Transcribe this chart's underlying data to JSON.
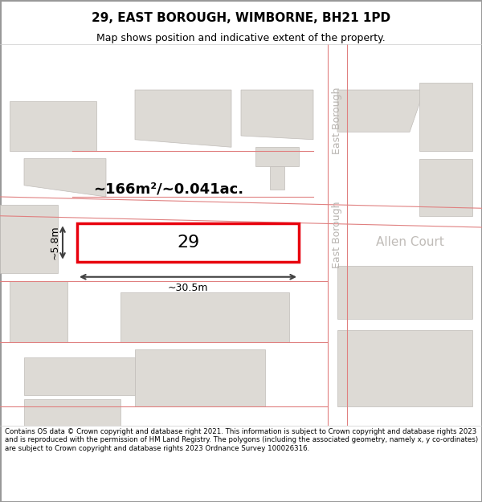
{
  "title": "29, EAST BOROUGH, WIMBORNE, BH21 1PD",
  "subtitle": "Map shows position and indicative extent of the property.",
  "footer": "Contains OS data © Crown copyright and database right 2021. This information is subject to Crown copyright and database rights 2023 and is reproduced with the permission of HM Land Registry. The polygons (including the associated geometry, namely x, y co-ordinates) are subject to Crown copyright and database rights 2023 Ordnance Survey 100026316.",
  "area_label": "~166m²/~0.041ac.",
  "width_label": "~30.5m",
  "height_label": "~5.8m",
  "plot_number": "29",
  "bg_color": "#f0eeea",
  "map_bg": "#f0eeea",
  "plot_fill": "#ffffff",
  "plot_edge": "#e8000d",
  "road_label_color": "#b0b0b0",
  "building_fill": "#d8d5d0",
  "building_edge": "#c0bcb8",
  "road_line_color": "#e08080",
  "dim_line_color": "#404040",
  "figsize": [
    6.0,
    6.25
  ],
  "dpi": 100
}
